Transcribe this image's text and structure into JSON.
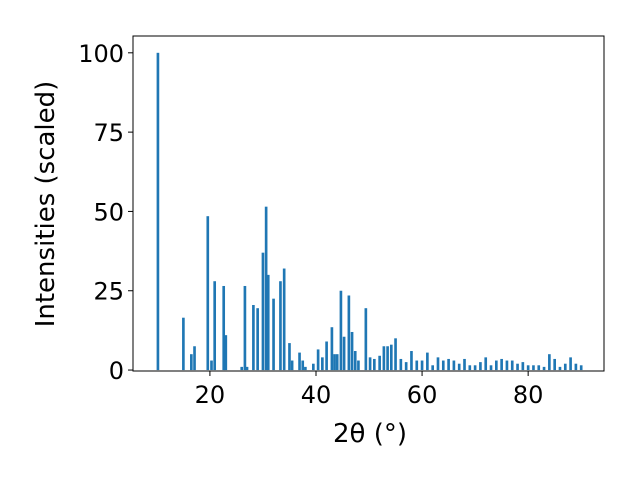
{
  "chart_data": {
    "type": "bar",
    "xlabel": "2θ (°)",
    "ylabel": "Intensities (scaled)",
    "color": "#1f77b4",
    "bar_width": 0.5,
    "x": [
      10.2,
      15.0,
      16.5,
      17.1,
      19.6,
      20.3,
      20.9,
      22.6,
      23.0,
      26.0,
      26.6,
      27.0,
      28.2,
      29.0,
      30.0,
      30.6,
      31.0,
      32.0,
      33.3,
      34.0,
      35.0,
      35.5,
      36.9,
      37.5,
      38.0,
      39.5,
      40.4,
      41.2,
      42.0,
      43.0,
      43.5,
      44.0,
      44.7,
      45.3,
      46.2,
      46.8,
      47.4,
      48.0,
      49.4,
      50.2,
      51.0,
      52.0,
      52.8,
      53.5,
      54.2,
      55.0,
      56.0,
      57.0,
      58.0,
      59.0,
      60.0,
      61.0,
      62.0,
      63.0,
      64.0,
      65.0,
      66.0,
      67.0,
      68.0,
      69.0,
      70.0,
      71.0,
      72.0,
      73.0,
      74.0,
      75.0,
      76.0,
      77.0,
      78.0,
      79.0,
      80.0,
      81.0,
      82.0,
      83.0,
      84.0,
      85.0,
      86.0,
      87.0,
      88.0,
      89.0,
      90.0
    ],
    "values": [
      100,
      16.5,
      5,
      7.5,
      48.5,
      3,
      28,
      26.5,
      11,
      1,
      26.5,
      1,
      20.5,
      19.5,
      37,
      51.5,
      30,
      22.5,
      28,
      32,
      8.5,
      3,
      5.5,
      3,
      1,
      2,
      6.5,
      4,
      9,
      13.5,
      5,
      5,
      25,
      10.5,
      23.5,
      12,
      6,
      3,
      19.5,
      4,
      3.5,
      4.5,
      7.5,
      7.5,
      8,
      10,
      3.5,
      2.5,
      6,
      3,
      3,
      5.5,
      1.5,
      4,
      3,
      3.5,
      3,
      2,
      3.5,
      1.5,
      1.5,
      2.5,
      4,
      1.5,
      3,
      3.5,
      3,
      3,
      2,
      2.5,
      1.5,
      1.5,
      1.5,
      1,
      5,
      3.5,
      1,
      2,
      4,
      2,
      1.5
    ],
    "xlim": [
      5.5,
      94.3
    ],
    "ylim": [
      -0.3,
      105.3
    ],
    "xticks": [
      20,
      40,
      60,
      80
    ],
    "yticks": [
      0,
      25,
      50,
      75,
      100
    ]
  }
}
